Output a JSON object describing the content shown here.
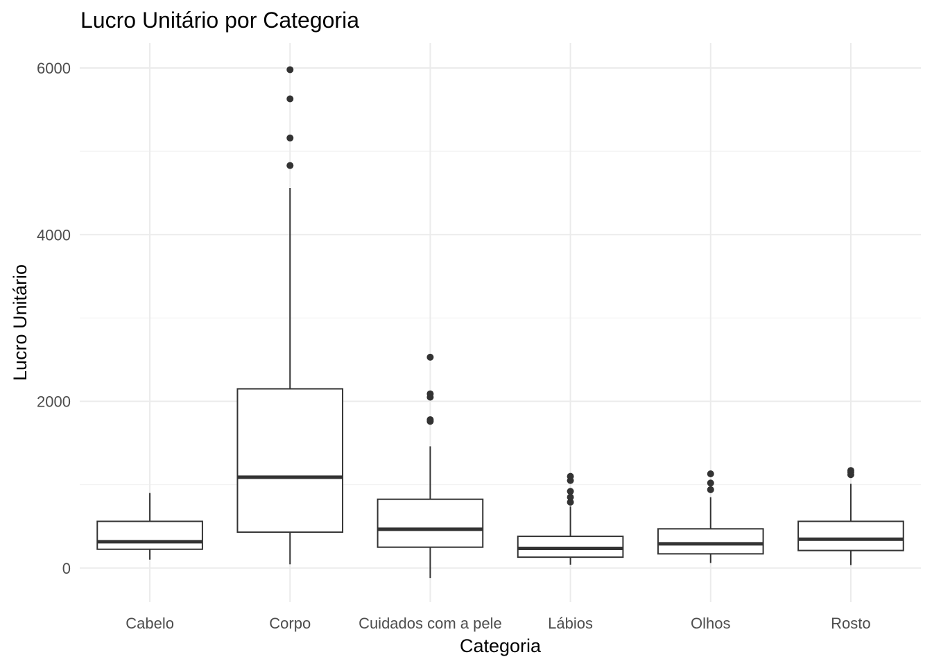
{
  "chart_data": {
    "type": "box",
    "title": "Lucro Unitário por Categoria",
    "xlabel": "Categoria",
    "ylabel": "Lucro Unitário",
    "ylim": [
      -410,
      6300
    ],
    "yticks": [
      0,
      2000,
      4000,
      6000
    ],
    "grid": true,
    "categories": [
      "Cabelo",
      "Corpo",
      "Cuidados com a pele",
      "Lábios",
      "Olhos",
      "Rosto"
    ],
    "boxes": [
      {
        "category": "Cabelo",
        "whisker_low": 100,
        "q1": 225,
        "median": 315,
        "q3": 560,
        "whisker_high": 900,
        "outliers": []
      },
      {
        "category": "Corpo",
        "whisker_low": 45,
        "q1": 430,
        "median": 1090,
        "q3": 2150,
        "whisker_high": 4560,
        "outliers": [
          4830,
          5160,
          5630,
          5980
        ]
      },
      {
        "category": "Cuidados com a pele",
        "whisker_low": -120,
        "q1": 250,
        "median": 465,
        "q3": 825,
        "whisker_high": 1460,
        "outliers": [
          1760,
          1780,
          2050,
          2090,
          2530
        ]
      },
      {
        "category": "Lábios",
        "whisker_low": 40,
        "q1": 130,
        "median": 235,
        "q3": 380,
        "whisker_high": 740,
        "outliers": [
          790,
          850,
          920,
          1050,
          1100
        ]
      },
      {
        "category": "Olhos",
        "whisker_low": 60,
        "q1": 170,
        "median": 290,
        "q3": 470,
        "whisker_high": 850,
        "outliers": [
          940,
          1020,
          1130
        ]
      },
      {
        "category": "Rosto",
        "whisker_low": 35,
        "q1": 210,
        "median": 345,
        "q3": 560,
        "whisker_high": 1010,
        "outliers": [
          1120,
          1150,
          1170
        ]
      }
    ]
  }
}
